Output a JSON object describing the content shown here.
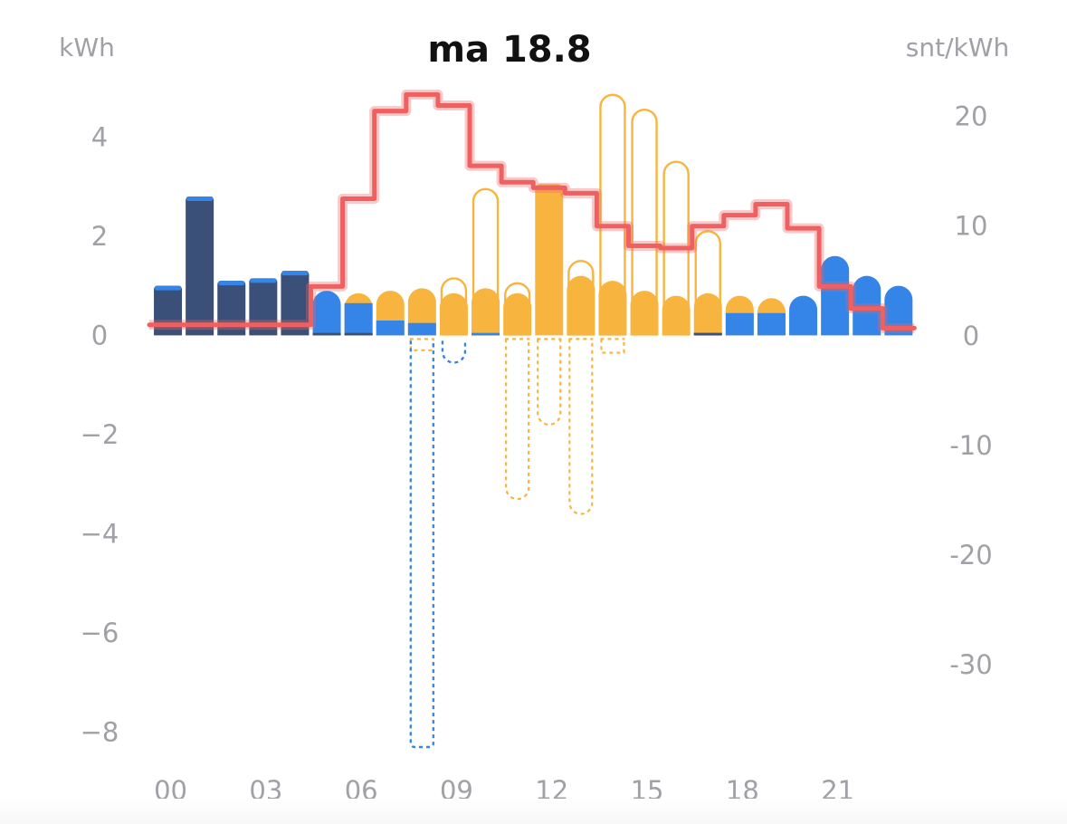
{
  "header": {
    "title": "ma 18.8",
    "left_unit": "kWh",
    "right_unit": "snt/kWh"
  },
  "colors": {
    "grid_import": "#3b5078",
    "battery": "#3585e8",
    "solar": "#f7b540",
    "price_line": "#ef6060",
    "axis_text": "#a0a0a6"
  },
  "chart_data": {
    "type": "bar",
    "title": "ma 18.8",
    "ylabel": "kWh",
    "y2label": "snt/kWh",
    "ylim": [
      -8.3,
      4.9
    ],
    "y2lim": [
      -37.5,
      22.2
    ],
    "y_ticks": [
      "4",
      "2",
      "0",
      "−2",
      "−4",
      "−6",
      "−8"
    ],
    "y_tick_values": [
      4,
      2,
      0,
      -2,
      -4,
      -6,
      -8
    ],
    "y2_ticks": [
      "20",
      "10",
      "0",
      "-10",
      "-20",
      "-30"
    ],
    "y2_tick_values": [
      20,
      10,
      0,
      -10,
      -20,
      -30
    ],
    "x_tick_labels": [
      "00",
      "03",
      "06",
      "09",
      "12",
      "15",
      "18",
      "21"
    ],
    "x_tick_hours": [
      0,
      3,
      6,
      9,
      12,
      15,
      18,
      21
    ],
    "categories": [
      "00",
      "01",
      "02",
      "03",
      "04",
      "05",
      "06",
      "07",
      "08",
      "09",
      "10",
      "11",
      "12",
      "13",
      "14",
      "15",
      "16",
      "17",
      "18",
      "19",
      "20",
      "21",
      "22",
      "23"
    ],
    "series": [
      {
        "key": "grid",
        "values": [
          1.0,
          2.8,
          1.1,
          1.15,
          1.3,
          0.05,
          0.05,
          0,
          0,
          0,
          0,
          0,
          0,
          0,
          0,
          0,
          0,
          0.05,
          0,
          0,
          0,
          0,
          0,
          0
        ]
      },
      {
        "key": "battery",
        "values": [
          0,
          0,
          0,
          0,
          0,
          0.85,
          0.6,
          0.3,
          0.25,
          0,
          0.05,
          0,
          0,
          0,
          0,
          0,
          0,
          0,
          0.45,
          0.45,
          0.8,
          1.6,
          1.2,
          1.0
        ]
      },
      {
        "key": "solar",
        "values": [
          0,
          0,
          0,
          0,
          0,
          0,
          0.2,
          0.6,
          0.7,
          0.85,
          0.9,
          0.85,
          3.05,
          1.2,
          1.1,
          0.9,
          0.8,
          0.8,
          0.35,
          0.3,
          0,
          0,
          0,
          0
        ]
      },
      {
        "key": "solar_potential",
        "values": [
          0,
          0,
          0,
          0,
          0,
          0,
          0,
          0,
          0,
          1.15,
          2.95,
          1.05,
          0,
          1.5,
          4.85,
          4.55,
          3.5,
          2.1,
          0,
          0,
          0,
          0,
          0,
          0
        ]
      },
      {
        "key": "battery_negative",
        "values": [
          0,
          0,
          0,
          0,
          0,
          0,
          0,
          0,
          -8.3,
          -0.55,
          0,
          0,
          0,
          0,
          0,
          0,
          0,
          0,
          0,
          0,
          0,
          0,
          0,
          0
        ]
      },
      {
        "key": "solar_negative",
        "values": [
          0,
          0,
          0,
          0,
          0,
          0,
          0,
          0,
          -0.3,
          0,
          0,
          -3.3,
          -1.8,
          -3.6,
          -0.35,
          0,
          0,
          0,
          0,
          0,
          0,
          0,
          0,
          0
        ]
      },
      {
        "key": "price",
        "axis": "right",
        "values": [
          1.0,
          1.0,
          1.0,
          1.0,
          1.0,
          4.5,
          12.5,
          20.5,
          22.0,
          21.0,
          15.5,
          14.0,
          13.5,
          13.0,
          10.0,
          8.2,
          8.0,
          10.0,
          11.0,
          12.0,
          9.8,
          4.5,
          2.5,
          0.7
        ]
      }
    ]
  }
}
